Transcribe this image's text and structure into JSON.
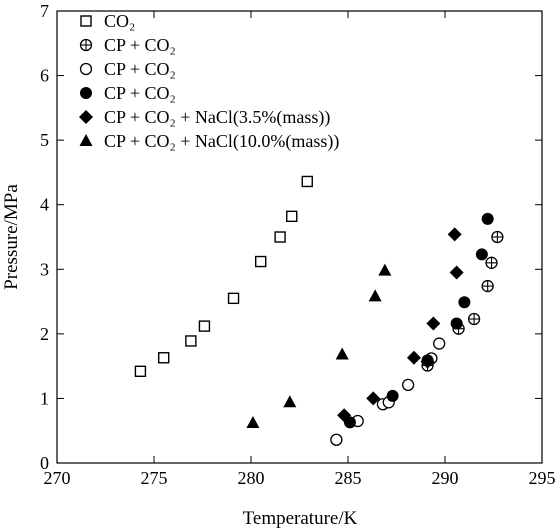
{
  "chart_data": {
    "type": "scatter",
    "xlabel": "Temperature/K",
    "ylabel": "Pressure/MPa",
    "xlim": [
      270,
      295
    ],
    "ylim": [
      0,
      7
    ],
    "xticks": [
      "270",
      "275",
      "280",
      "285",
      "290",
      "295"
    ],
    "yticks": [
      "0",
      "1",
      "2",
      "3",
      "4",
      "5",
      "6",
      "7"
    ],
    "grid": false,
    "legend_position": "top-left",
    "series": [
      {
        "name": "CO₂",
        "marker": "open-square",
        "x": [
          274.3,
          275.5,
          276.9,
          277.6,
          279.1,
          280.5,
          281.5,
          282.1,
          282.9
        ],
        "y": [
          1.42,
          1.63,
          1.89,
          2.12,
          2.55,
          3.12,
          3.5,
          3.82,
          4.36
        ]
      },
      {
        "name": "CP + CO₂",
        "marker": "crossed-circle",
        "x": [
          289.1,
          290.7,
          291.5,
          292.2,
          292.4,
          292.7
        ],
        "y": [
          1.51,
          2.08,
          2.23,
          2.74,
          3.1,
          3.5
        ]
      },
      {
        "name": "CP + CO₂",
        "marker": "open-circle",
        "x": [
          284.4,
          285.5,
          286.8,
          287.1,
          288.1,
          289.3,
          289.7
        ],
        "y": [
          0.36,
          0.65,
          0.91,
          0.94,
          1.21,
          1.62,
          1.85
        ]
      },
      {
        "name": "CP + CO₂",
        "marker": "filled-circle",
        "x": [
          285.1,
          287.3,
          289.1,
          290.6,
          291.0,
          291.9,
          292.2
        ],
        "y": [
          0.63,
          1.04,
          1.59,
          2.16,
          2.49,
          3.23,
          3.78
        ]
      },
      {
        "name": "CP + CO₂ + NaCl(3.5%(mass))",
        "marker": "filled-diamond",
        "x": [
          284.8,
          286.3,
          288.4,
          289.1,
          289.4,
          290.6,
          290.5
        ],
        "y": [
          0.74,
          1.0,
          1.63,
          1.57,
          2.16,
          2.95,
          3.54
        ]
      },
      {
        "name": "CP + CO₂ + NaCl(10.0%(mass))",
        "marker": "filled-triangle",
        "x": [
          280.1,
          282.0,
          284.7,
          286.4,
          286.9
        ],
        "y": [
          0.62,
          0.94,
          1.68,
          2.58,
          2.98
        ]
      }
    ]
  }
}
